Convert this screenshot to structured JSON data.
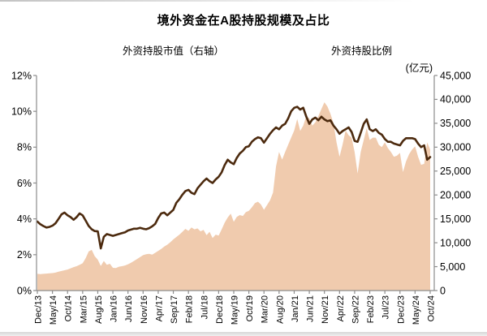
{
  "title": "境外资金在A股持股规模及占比",
  "legend": {
    "area_label": "外资持股市值（右轴）",
    "line_label": "外资持股比例"
  },
  "right_axis_unit": "(亿元)",
  "colors": {
    "area_fill": "#F0CBAE",
    "line": "#4C2A0E",
    "axis": "#8C8C8C",
    "label": "#000000"
  },
  "chart_data": {
    "type": "combo: area (right axis, 亿元) + line (left axis, %)",
    "title": "境外资金在A股持股规模及占比",
    "x_unit": "month",
    "x_start": "Dec/13",
    "x_end": "Oct/24",
    "x_points": 131,
    "x_tick_labels": [
      "Dec/13",
      "May/14",
      "Oct/14",
      "Mar/15",
      "Aug/15",
      "Jan/16",
      "Jun/16",
      "Nov/16",
      "Apr/17",
      "Sep/17",
      "Feb/18",
      "Jul/18",
      "Dec/18",
      "May/19",
      "Oct/19",
      "Mar/20",
      "Aug/20",
      "Jan/21",
      "Jun/21",
      "Nov/21",
      "Apr/22",
      "Sep/22",
      "Feb/23",
      "Jul/23",
      "Dec/23",
      "May/24",
      "Oct/24"
    ],
    "x_tick_every_n_points": 5,
    "left_axis": {
      "min": 0,
      "max": 12,
      "ticks": [
        "0%",
        "2%",
        "4%",
        "6%",
        "8%",
        "10%",
        "12%"
      ]
    },
    "right_axis": {
      "min": 0,
      "max": 45000,
      "ticks": [
        "0",
        "5,000",
        "10,000",
        "15,000",
        "20,000",
        "25,000",
        "30,000",
        "35,000",
        "40,000",
        "45,000"
      ]
    },
    "grid": "off",
    "legend_position": "top",
    "series": [
      {
        "name": "外资持股市值（右轴）",
        "type": "area",
        "axis": "right",
        "values": [
          3500,
          3450,
          3500,
          3550,
          3600,
          3650,
          3750,
          3950,
          4100,
          4250,
          4400,
          4650,
          4900,
          5100,
          5400,
          5700,
          6800,
          8200,
          8500,
          7200,
          6450,
          5150,
          6200,
          5400,
          5600,
          4750,
          4700,
          5000,
          5100,
          5250,
          5500,
          5800,
          6200,
          6600,
          7000,
          7400,
          7600,
          7700,
          7500,
          7900,
          8300,
          8700,
          9200,
          9600,
          10100,
          10700,
          11200,
          11700,
          12300,
          12900,
          12500,
          13200,
          12800,
          13000,
          12400,
          12700,
          11600,
          12300,
          11000,
          11700,
          11500,
          12800,
          14200,
          15300,
          16100,
          14400,
          15400,
          15800,
          15600,
          16400,
          16700,
          17400,
          18300,
          18600,
          18000,
          16900,
          17900,
          18900,
          20500,
          26000,
          29000,
          27400,
          29000,
          30500,
          32000,
          33500,
          35900,
          33400,
          34500,
          36500,
          36000,
          34500,
          35200,
          36500,
          38000,
          39400,
          38500,
          37000,
          35000,
          31000,
          28000,
          30500,
          33500,
          32500,
          32000,
          29000,
          24500,
          29000,
          31500,
          34000,
          31500,
          32000,
          32000,
          30500,
          30000,
          31000,
          29800,
          29000,
          28000,
          28200,
          28800,
          24800,
          27000,
          28500,
          29500,
          30200,
          28000,
          26300,
          26500,
          31000,
          29500
        ]
      },
      {
        "name": "外资持股比例",
        "type": "line",
        "axis": "left",
        "values": [
          3.85,
          3.7,
          3.6,
          3.52,
          3.55,
          3.62,
          3.75,
          4.0,
          4.25,
          4.35,
          4.2,
          4.1,
          3.95,
          4.1,
          4.3,
          4.2,
          3.9,
          3.6,
          3.42,
          3.32,
          3.3,
          2.35,
          3.0,
          3.15,
          3.1,
          3.05,
          3.1,
          3.15,
          3.2,
          3.25,
          3.35,
          3.4,
          3.45,
          3.45,
          3.5,
          3.45,
          3.42,
          3.48,
          3.58,
          3.72,
          4.05,
          4.3,
          4.35,
          4.2,
          4.35,
          4.5,
          4.9,
          5.1,
          5.35,
          5.55,
          5.62,
          5.45,
          5.38,
          5.7,
          5.9,
          6.1,
          6.25,
          6.1,
          6.0,
          6.2,
          6.35,
          6.6,
          7.0,
          7.3,
          7.15,
          7.05,
          7.4,
          7.65,
          7.8,
          8.0,
          8.05,
          8.3,
          8.45,
          8.55,
          8.5,
          8.25,
          8.5,
          8.75,
          8.95,
          9.1,
          9.0,
          9.2,
          9.3,
          9.6,
          10.0,
          10.2,
          10.25,
          10.1,
          10.2,
          9.7,
          9.3,
          9.55,
          9.65,
          9.5,
          9.7,
          9.55,
          9.45,
          9.5,
          9.2,
          9.0,
          8.75,
          8.9,
          9.0,
          9.1,
          8.85,
          8.35,
          8.3,
          8.8,
          9.3,
          9.55,
          9.0,
          8.9,
          9.0,
          8.8,
          8.7,
          8.45,
          8.3,
          8.3,
          8.2,
          8.15,
          8.1,
          8.35,
          8.5,
          8.5,
          8.5,
          8.45,
          8.2,
          8.0,
          8.1,
          7.3,
          7.45
        ]
      }
    ]
  }
}
